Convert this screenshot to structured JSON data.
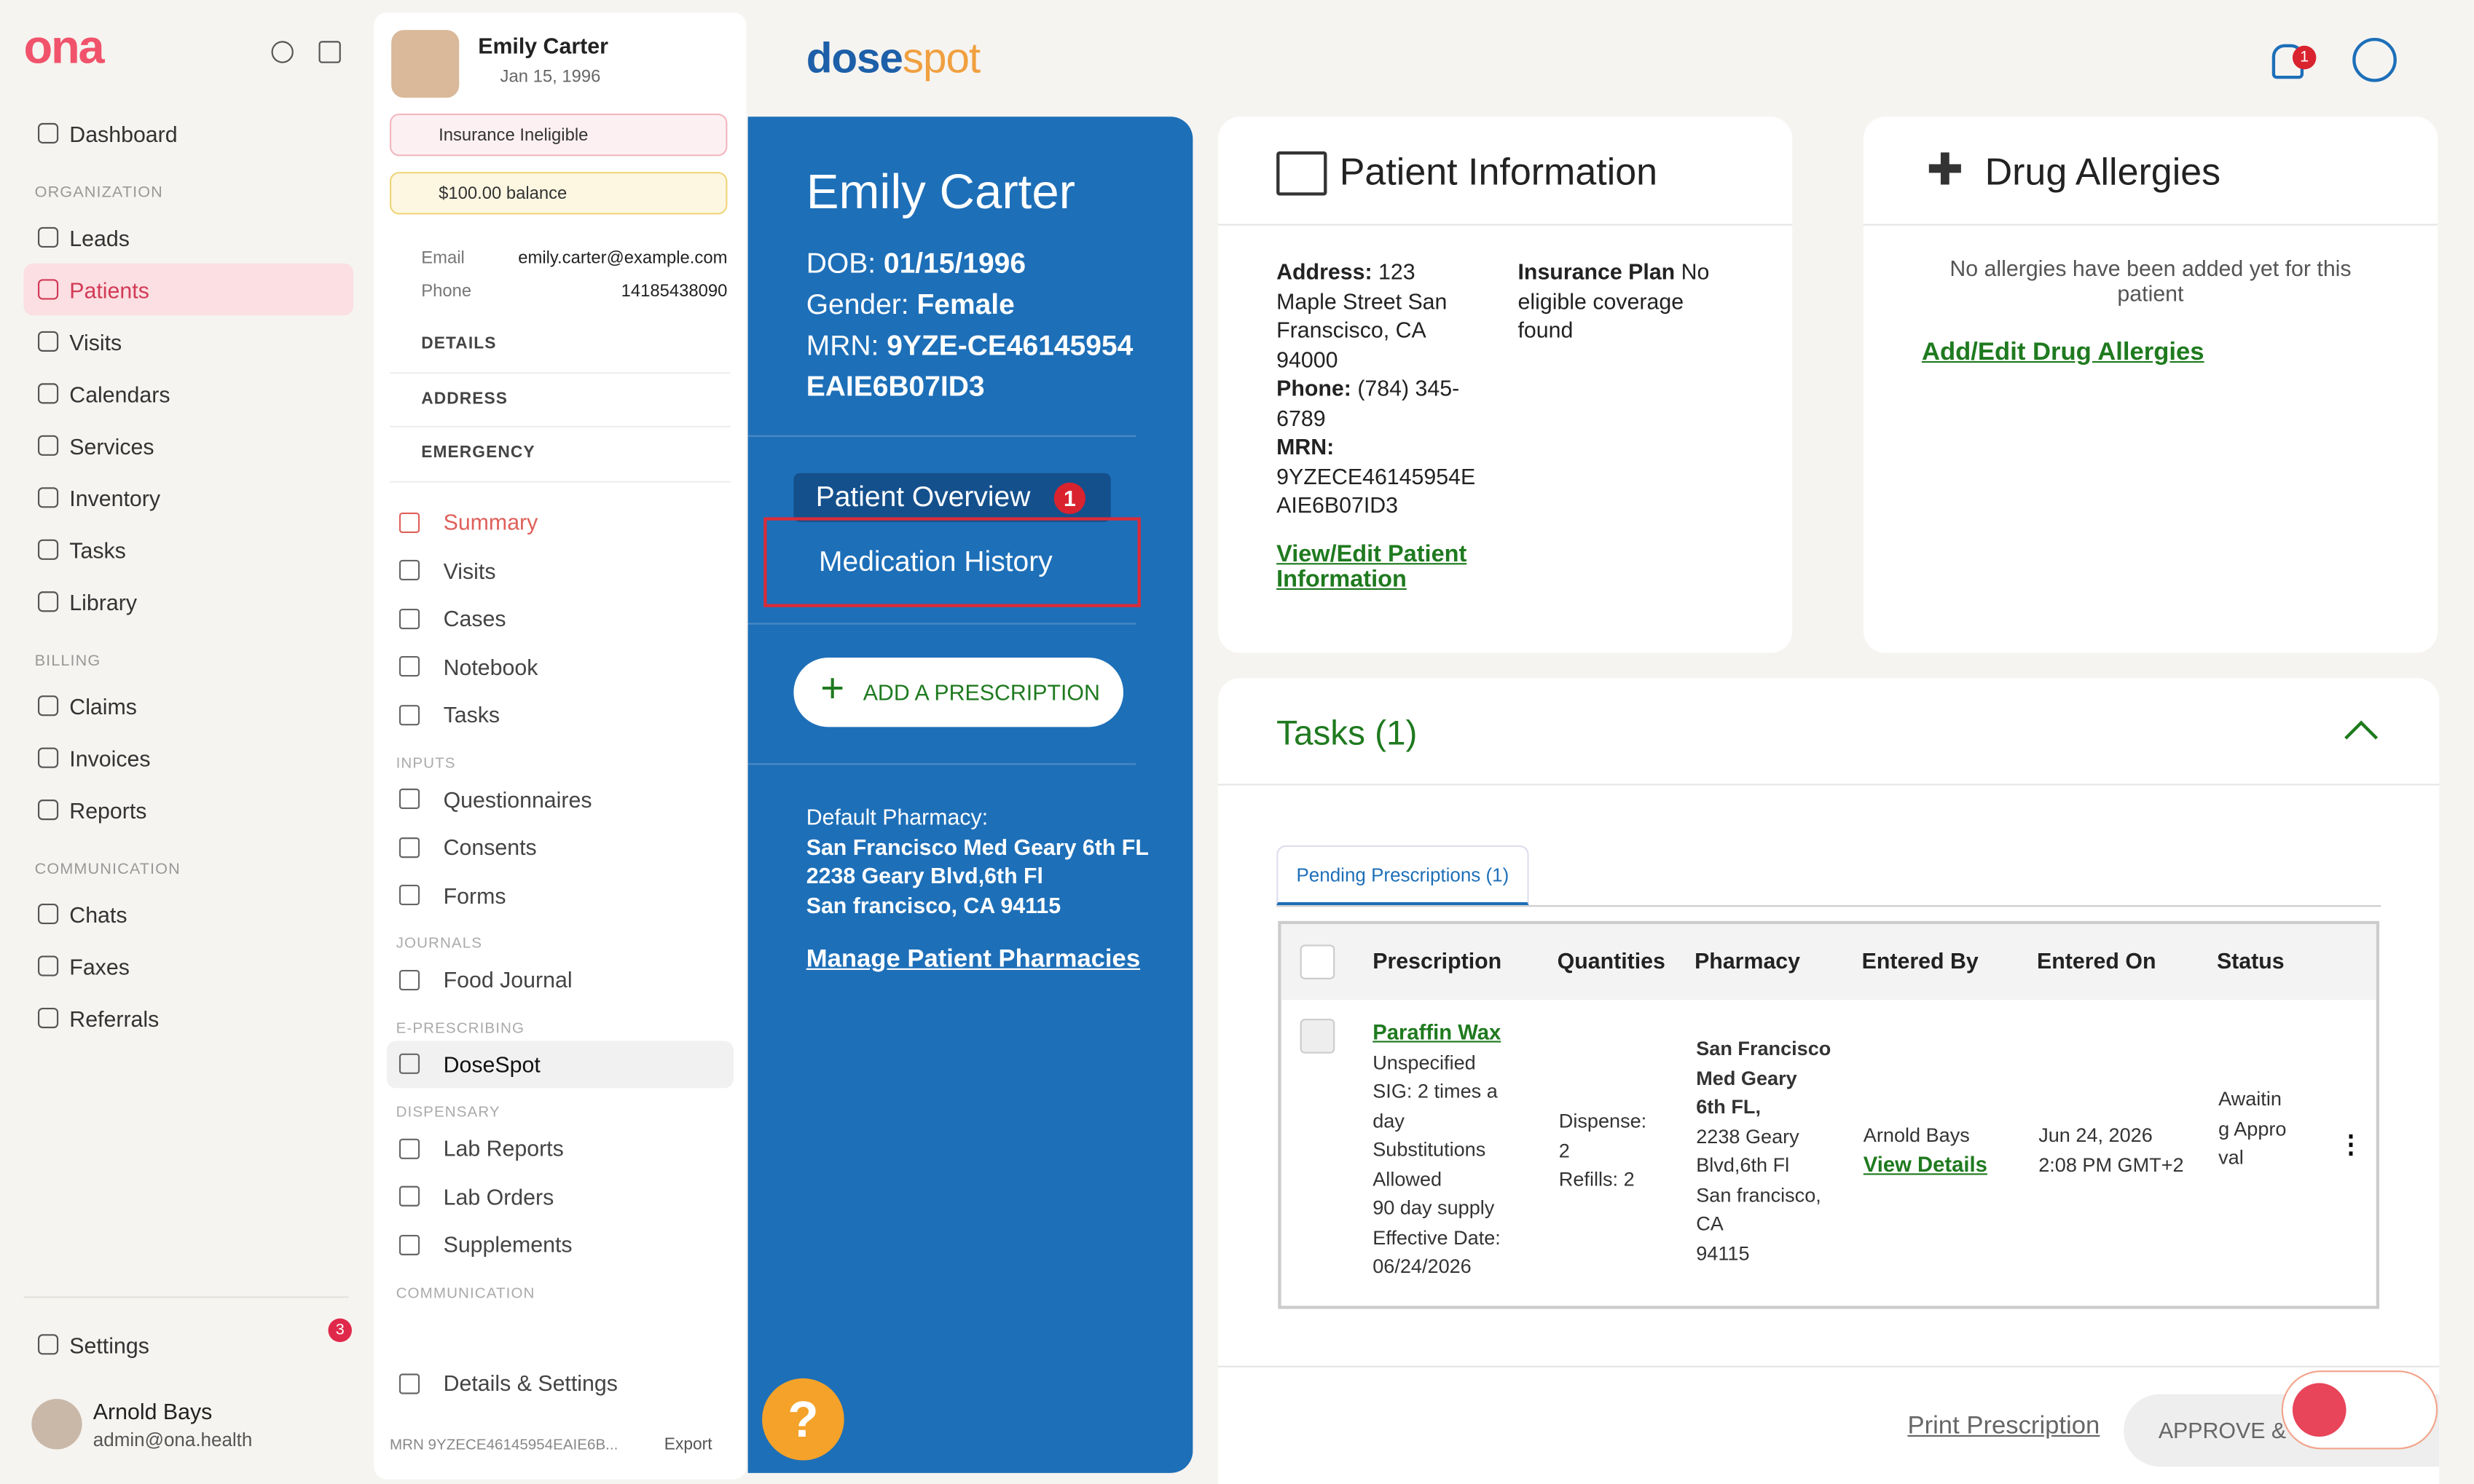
{
  "sidebar": {
    "logo": "ona",
    "groups": [
      {
        "items": [
          {
            "label": "Dashboard"
          }
        ]
      },
      {
        "heading": "ORGANIZATION",
        "items": [
          {
            "label": "Leads"
          },
          {
            "label": "Patients",
            "active": true
          },
          {
            "label": "Visits"
          },
          {
            "label": "Calendars"
          },
          {
            "label": "Services"
          },
          {
            "label": "Inventory"
          },
          {
            "label": "Tasks"
          },
          {
            "label": "Library"
          }
        ]
      },
      {
        "heading": "BILLING",
        "items": [
          {
            "label": "Claims"
          },
          {
            "label": "Invoices"
          },
          {
            "label": "Reports"
          }
        ]
      },
      {
        "heading": "COMMUNICATION",
        "items": [
          {
            "label": "Chats"
          },
          {
            "label": "Faxes"
          },
          {
            "label": "Referrals"
          }
        ]
      }
    ],
    "settings": "Settings",
    "notification_count": "3",
    "user": {
      "name": "Arnold Bays",
      "email": "admin@ona.health"
    }
  },
  "patient_panel": {
    "name": "Emily Carter",
    "dob": "Jan 15, 1996",
    "insurance": "Insurance Ineligible",
    "balance": "$100.00 balance",
    "contacts": [
      {
        "label": "Email",
        "value": "emily.carter@example.com"
      },
      {
        "label": "Phone",
        "value": "14185438090"
      }
    ],
    "accordions": [
      "DETAILS",
      "ADDRESS",
      "EMERGENCY"
    ],
    "groups": [
      {
        "items": [
          {
            "label": "Summary",
            "active": true
          },
          {
            "label": "Visits"
          },
          {
            "label": "Cases"
          },
          {
            "label": "Notebook"
          },
          {
            "label": "Tasks"
          }
        ]
      },
      {
        "heading": "INPUTS",
        "items": [
          {
            "label": "Questionnaires"
          },
          {
            "label": "Consents"
          },
          {
            "label": "Forms"
          }
        ]
      },
      {
        "heading": "JOURNALS",
        "items": [
          {
            "label": "Food Journal"
          }
        ]
      },
      {
        "heading": "E-PRESCRIBING",
        "items": [
          {
            "label": "DoseSpot",
            "selected": true
          }
        ]
      },
      {
        "heading": "DISPENSARY",
        "items": [
          {
            "label": "Lab Reports"
          },
          {
            "label": "Lab Orders"
          },
          {
            "label": "Supplements"
          }
        ]
      },
      {
        "heading": "COMMUNICATION",
        "items": []
      }
    ],
    "details_settings": "Details & Settings",
    "mrn_footer": "MRN 9YZECE46145954EAIE6B...",
    "export": "Export"
  },
  "header": {
    "logo_dose": "dose",
    "logo_spot": "spot",
    "notification_count": "1"
  },
  "blue_panel": {
    "name": "Emily Carter",
    "dob_label": "DOB:",
    "dob": "01/15/1996",
    "gender_label": "Gender:",
    "gender": "Female",
    "mrn_label": "MRN:",
    "mrn": "9YZE-CE46145954EAIE6B07ID3",
    "tabs": [
      "Patient Overview",
      "Medication History"
    ],
    "tab_badge": "1",
    "add_button": "ADD A PRESCRIPTION",
    "pharmacy_label": "Default Pharmacy:",
    "pharmacy_lines": [
      "San Francisco Med Geary 6th FL",
      "2238 Geary Blvd,6th Fl",
      "San francisco, CA 94115"
    ],
    "manage_link": "Manage Patient Pharmacies",
    "help": "?"
  },
  "patient_info": {
    "title": "Patient Information",
    "address_label": "Address:",
    "address": "123 Maple Street San Franscisco, CA 94000",
    "phone_label": "Phone:",
    "phone": "(784) 345-6789",
    "mrn_label": "MRN:",
    "mrn": "9YZECE46145954EAIE6B07ID3",
    "insurance_label": "Insurance Plan",
    "insurance": "No eligible coverage found",
    "link": "View/Edit Patient Information"
  },
  "drug_allergies": {
    "title": "Drug Allergies",
    "message": "No allergies have been added yet for this patient",
    "link": "Add/Edit Drug Allergies"
  },
  "tasks": {
    "title": "Tasks (1)",
    "tab": "Pending Prescriptions (1)",
    "table": {
      "headers": [
        "Prescription",
        "Quantities",
        "Pharmacy",
        "Entered By",
        "Entered On",
        "Status"
      ],
      "rows": [
        {
          "prescription": "Paraffin Wax",
          "details": [
            "Unspecified",
            "SIG: 2 times a day",
            "Substitutions Allowed",
            "90 day supply",
            "Effective Date: 06/24/2026"
          ],
          "quantities": [
            "Dispense: 2",
            "Refills: 2"
          ],
          "pharmacy": [
            "San Francisco Med Geary 6th FL,",
            "2238 Geary Blvd,6th Fl",
            "San francisco, CA",
            "94115"
          ],
          "entered_by": "Arnold Bays",
          "view_details": "View Details",
          "entered_on": [
            "Jun 24, 2026",
            "2:08 PM GMT+2"
          ],
          "status": "Awaiting Approval"
        }
      ]
    },
    "print": "Print Prescription",
    "approve": "APPROVE &"
  }
}
